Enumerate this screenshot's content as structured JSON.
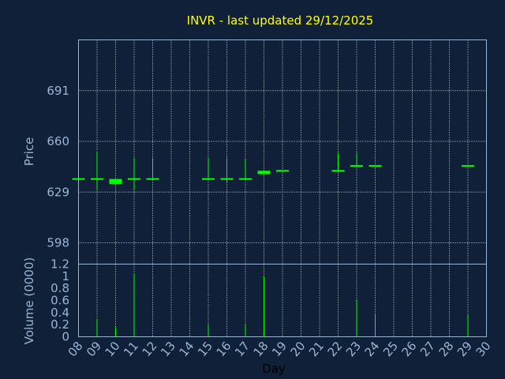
{
  "chart_data": {
    "title": "INVR - last updated 29/12/2025",
    "xlabel": "Day",
    "x_ticks": [
      "08",
      "09",
      "10",
      "11",
      "12",
      "13",
      "14",
      "15",
      "16",
      "17",
      "18",
      "19",
      "20",
      "21",
      "22",
      "23",
      "24",
      "25",
      "26",
      "27",
      "28",
      "29",
      "30"
    ],
    "colors": {
      "background": "#0f2038",
      "title": "#ffff00",
      "axis": "#9bb5d4",
      "bars": "#00ff00",
      "grid": "#ffffff"
    },
    "price": {
      "type": "candlestick",
      "ylabel": "Price",
      "yticks": [
        598,
        629,
        660,
        691
      ],
      "ylim": [
        585,
        722
      ],
      "candles": [
        {
          "day": 8,
          "open": 637,
          "close": 637,
          "high": 637,
          "low": 637
        },
        {
          "day": 9,
          "open": 637,
          "close": 637,
          "high": 654,
          "low": 630
        },
        {
          "day": 10,
          "open": 637,
          "close": 634,
          "high": 637,
          "low": 634
        },
        {
          "day": 11,
          "open": 637,
          "close": 637,
          "high": 650,
          "low": 630
        },
        {
          "day": 12,
          "open": 637,
          "close": 637,
          "high": 650,
          "low": 637
        },
        {
          "day": 15,
          "open": 637,
          "close": 637,
          "high": 650,
          "low": 637
        },
        {
          "day": 16,
          "open": 637,
          "close": 637,
          "high": 650,
          "low": 635
        },
        {
          "day": 17,
          "open": 637,
          "close": 637,
          "high": 649,
          "low": 637
        },
        {
          "day": 18,
          "open": 642,
          "close": 640,
          "high": 642,
          "low": 640
        },
        {
          "day": 19,
          "open": 642,
          "close": 642,
          "high": 642,
          "low": 642
        },
        {
          "day": 22,
          "open": 642,
          "close": 642,
          "high": 653,
          "low": 642
        },
        {
          "day": 23,
          "open": 645,
          "close": 645,
          "high": 653,
          "low": 645
        },
        {
          "day": 24,
          "open": 645,
          "close": 645,
          "high": 645,
          "low": 645
        },
        {
          "day": 29,
          "open": 645,
          "close": 645,
          "high": 645,
          "low": 645
        }
      ]
    },
    "volume": {
      "type": "bar",
      "ylabel": "Volume (0000)",
      "yticks": [
        "0",
        "0.2",
        "0.4",
        "0.6",
        "0.8",
        "1",
        "1.2"
      ],
      "ylim": [
        0,
        1.2
      ],
      "bars": [
        {
          "day": 9,
          "value": 0.3
        },
        {
          "day": 10,
          "value": 0.16
        },
        {
          "day": 11,
          "value": 1.05
        },
        {
          "day": 15,
          "value": 0.2
        },
        {
          "day": 17,
          "value": 0.2
        },
        {
          "day": 18,
          "value": 1.0
        },
        {
          "day": 23,
          "value": 0.6
        },
        {
          "day": 24,
          "value": 0.36
        },
        {
          "day": 29,
          "value": 0.36
        }
      ]
    }
  }
}
